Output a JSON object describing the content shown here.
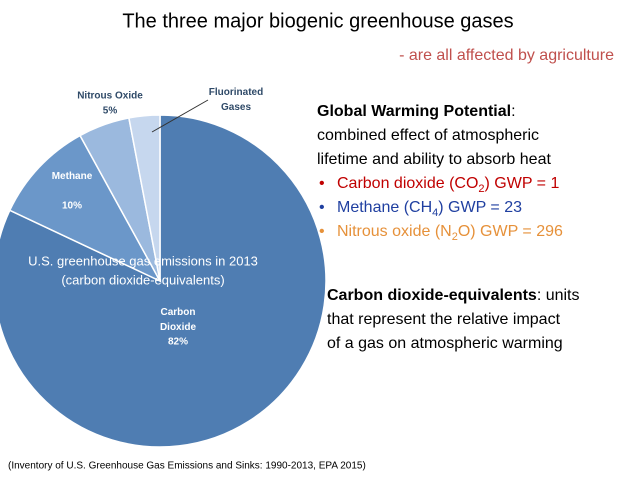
{
  "title": "The three major biogenic greenhouse gases",
  "subtitle": "- are all affected by agriculture",
  "chart_data": {
    "type": "pie",
    "note_lines": [
      "U.S. greenhouse gas emissions in 2013",
      "(carbon dioxide-equivalents)"
    ],
    "categories": [
      "Carbon Dioxide",
      "Methane",
      "Nitrous Oxide",
      "Fluorinated Gases"
    ],
    "values": [
      82,
      10,
      5,
      3
    ],
    "value_labels": [
      "82%",
      "10%",
      "5%",
      null
    ],
    "colors": [
      "#4f7db2",
      "#6b97c9",
      "#9bb9de",
      "#c6d7ee"
    ]
  },
  "gwp": {
    "heading": "Global Warming Potential",
    "heading_end": ":",
    "lines": [
      "combined effect of atmospheric",
      "lifetime and ability to absorb heat"
    ],
    "bullet": "•",
    "items": [
      {
        "prefix": "Carbon dioxide (CO",
        "sub": "2",
        "suffix": ") GWP = 1",
        "color": "#c00000"
      },
      {
        "prefix": "Methane (CH",
        "sub": "4",
        "suffix": ") GWP = 23",
        "color": "#1f3fa0"
      },
      {
        "prefix": "Nitrous oxide (N",
        "sub": "2",
        "suffix": "O) GWP = 296",
        "color": "#e6913a"
      }
    ]
  },
  "definition": {
    "term": "Carbon dioxide-equivalents",
    "lines": [
      ": units",
      "that represent the relative impact",
      "of a gas on atmospheric warming"
    ]
  },
  "citation": "(Inventory of U.S. Greenhouse Gas Emissions and Sinks: 1990-2013, EPA 2015)"
}
